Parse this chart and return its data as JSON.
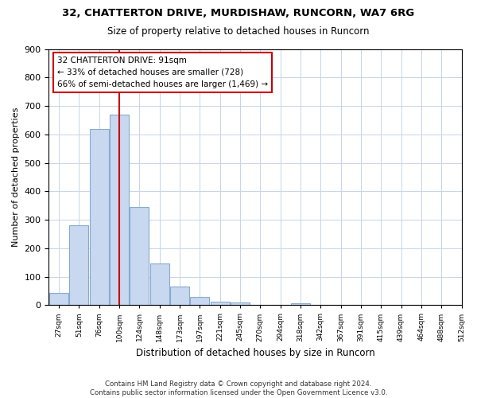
{
  "title1": "32, CHATTERTON DRIVE, MURDISHAW, RUNCORN, WA7 6RG",
  "title2": "Size of property relative to detached houses in Runcorn",
  "xlabel": "Distribution of detached houses by size in Runcorn",
  "ylabel": "Number of detached properties",
  "bar_values": [
    42,
    280,
    620,
    670,
    345,
    147,
    65,
    30,
    12,
    10,
    0,
    0,
    7,
    0,
    0,
    0,
    0,
    0,
    0,
    0
  ],
  "tick_labels": [
    "27sqm",
    "51sqm",
    "76sqm",
    "100sqm",
    "124sqm",
    "148sqm",
    "173sqm",
    "197sqm",
    "221sqm",
    "245sqm",
    "270sqm",
    "294sqm",
    "318sqm",
    "342sqm",
    "367sqm",
    "391sqm",
    "415sqm",
    "439sqm",
    "464sqm",
    "488sqm",
    "512sqm"
  ],
  "bar_facecolor": "#c8d8f0",
  "bar_edgecolor": "#88aacc",
  "property_line_idx": 3,
  "property_line_color": "#cc0000",
  "annotation_line1": "32 CHATTERTON DRIVE: 91sqm",
  "annotation_line2": "← 33% of detached houses are smaller (728)",
  "annotation_line3": "66% of semi-detached houses are larger (1,469) →",
  "annotation_box_color": "#ffffff",
  "annotation_box_edge": "#cc0000",
  "ylim": [
    0,
    900
  ],
  "yticks": [
    0,
    100,
    200,
    300,
    400,
    500,
    600,
    700,
    800,
    900
  ],
  "grid_color": "#c8d4e8",
  "footer_text": "Contains HM Land Registry data © Crown copyright and database right 2024.\nContains public sector information licensed under the Open Government Licence v3.0.",
  "bg_color": "#ffffff",
  "plot_bg_color": "#ffffff"
}
